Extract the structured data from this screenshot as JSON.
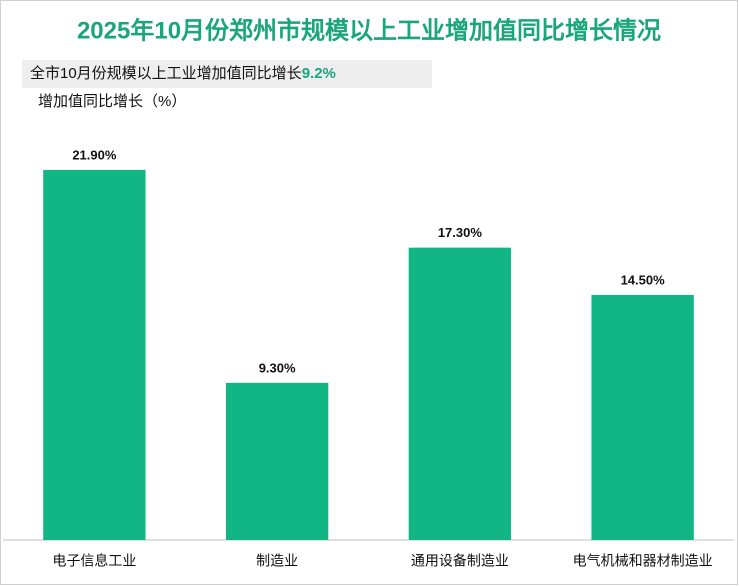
{
  "chart_data": {
    "type": "bar",
    "title": "2025年10月份郑州市规模以上工业增加值同比增长情况",
    "annotation": {
      "text": "全市10月份规模以上工业增加值同比增长",
      "highlight": "9.2%"
    },
    "y_label": "增加值同比增长（%）",
    "categories": [
      "电子信息工业",
      "制造业",
      "通用设备制造业",
      "电气机械和器材制造业"
    ],
    "values": [
      21.9,
      9.3,
      17.3,
      14.5
    ],
    "value_labels": [
      "21.90%",
      "9.30%",
      "17.30%",
      "14.50%"
    ],
    "color": "#12b584",
    "title_color": "#1aa67a",
    "ylim": [
      0,
      25
    ]
  }
}
